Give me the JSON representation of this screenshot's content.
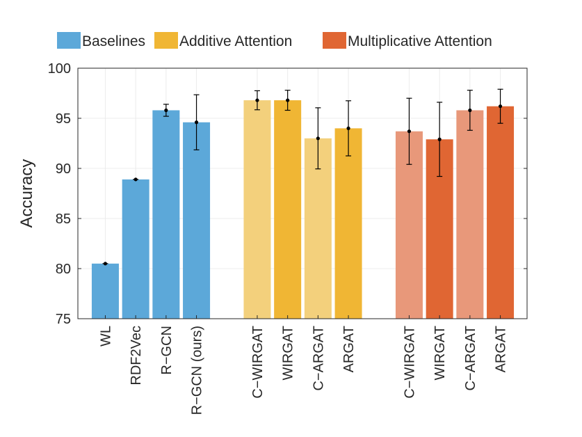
{
  "chart_data": {
    "type": "bar",
    "ylabel": "Accuracy",
    "ylim": [
      75,
      100
    ],
    "yticks": [
      75,
      80,
      85,
      90,
      95,
      100
    ],
    "grid": true,
    "legend": {
      "placement": "top",
      "entries": [
        {
          "name": "Baselines",
          "color": "#5ca8d9"
        },
        {
          "name": "Additive Attention",
          "color": "#f0b634"
        },
        {
          "name": "Multiplicative Attention",
          "color": "#e06633"
        }
      ]
    },
    "groups": [
      {
        "name": "Baselines",
        "bars": [
          {
            "label": "WL",
            "value": 80.5,
            "error": 0.0,
            "color": "#5ca8d9"
          },
          {
            "label": "RDF2Vec",
            "value": 88.9,
            "error": 0.0,
            "color": "#5ca8d9"
          },
          {
            "label": "R−GCN",
            "value": 95.8,
            "error": 0.6,
            "color": "#5ca8d9"
          },
          {
            "label": "R−GCN (ours)",
            "value": 94.6,
            "error": 2.75,
            "color": "#5ca8d9"
          }
        ]
      },
      {
        "name": "Additive Attention",
        "bars": [
          {
            "label": "C−WIRGAT",
            "value": 96.8,
            "error": 0.95,
            "color": "#f3d07c"
          },
          {
            "label": "WIRGAT",
            "value": 96.8,
            "error": 1.0,
            "color": "#f0b634"
          },
          {
            "label": "C−ARGAT",
            "value": 93.0,
            "error": 3.05,
            "color": "#f3d07c"
          },
          {
            "label": "ARGAT",
            "value": 94.0,
            "error": 2.75,
            "color": "#f0b634"
          }
        ]
      },
      {
        "name": "Multiplicative Attention",
        "bars": [
          {
            "label": "C−WIRGAT",
            "value": 93.7,
            "error": 3.3,
            "color": "#e8987a"
          },
          {
            "label": "WIRGAT",
            "value": 92.9,
            "error": 3.7,
            "color": "#e06633"
          },
          {
            "label": "C−ARGAT",
            "value": 95.8,
            "error": 2.0,
            "color": "#e8987a"
          },
          {
            "label": "ARGAT",
            "value": 96.2,
            "error": 1.7,
            "color": "#e06633"
          }
        ]
      }
    ]
  }
}
